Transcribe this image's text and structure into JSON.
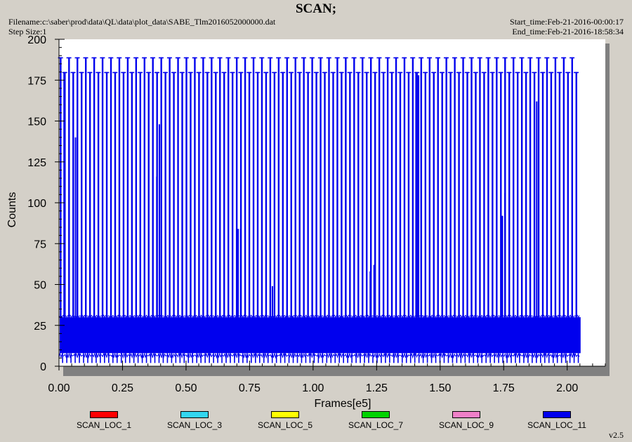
{
  "header": {
    "title": "SCAN;",
    "filename": "Filename:c:\\saber\\prod\\data\\QL\\data\\plot_data\\SABE_Tlm2016052000000.dat",
    "step_size": "Step Size:1",
    "start_time": "Start_time:Feb-21-2016-00:00:17",
    "end_time": "End_time:Feb-21-2016-18:58:34"
  },
  "version": "v2.5",
  "chart_data": {
    "type": "line",
    "title": "SCAN;",
    "xlabel": "Frames[e5]",
    "ylabel": "Counts",
    "xlim": [
      0.0,
      2.15
    ],
    "ylim": [
      0,
      200
    ],
    "xticks": [
      0.0,
      0.25,
      0.5,
      0.75,
      1.0,
      1.25,
      1.5,
      1.75,
      2.0
    ],
    "xtick_labels": [
      "0.00",
      "0.25",
      "0.50",
      "0.75",
      "1.00",
      "1.25",
      "1.50",
      "1.75",
      "2.00"
    ],
    "yticks": [
      0,
      25,
      50,
      75,
      100,
      125,
      150,
      175,
      200
    ],
    "ytick_labels": [
      "0",
      "25",
      "50",
      "75",
      "100",
      "125",
      "150",
      "175",
      "200"
    ],
    "grid": false,
    "legend_position": "bottom",
    "series": [
      {
        "name": "SCAN_LOC_1",
        "color": "#ff0000"
      },
      {
        "name": "SCAN_LOC_3",
        "color": "#33d6f0"
      },
      {
        "name": "SCAN_LOC_5",
        "color": "#ffff00"
      },
      {
        "name": "SCAN_LOC_7",
        "color": "#00d400"
      },
      {
        "name": "SCAN_LOC_9",
        "color": "#f080c8"
      },
      {
        "name": "SCAN_LOC_11",
        "color": "#0000ee",
        "x_range": [
          0.0,
          2.05
        ],
        "baseline_band": [
          8,
          30
        ],
        "repeating_peak": 180,
        "scan_period": 0.0165,
        "periodic_peak_value": 189,
        "periodic_peak_every": 2,
        "tall_spikes": [
          {
            "x": 0.02,
            "y": 180
          },
          {
            "x": 0.065,
            "y": 140
          },
          {
            "x": 0.385,
            "y": 116
          },
          {
            "x": 0.395,
            "y": 148
          },
          {
            "x": 0.705,
            "y": 84
          },
          {
            "x": 0.715,
            "y": 84
          },
          {
            "x": 0.84,
            "y": 49
          },
          {
            "x": 0.925,
            "y": 15
          },
          {
            "x": 1.225,
            "y": 58
          },
          {
            "x": 1.24,
            "y": 62
          },
          {
            "x": 1.405,
            "y": 180
          },
          {
            "x": 1.415,
            "y": 178
          },
          {
            "x": 1.425,
            "y": 180
          },
          {
            "x": 1.745,
            "y": 92
          },
          {
            "x": 1.755,
            "y": 106
          },
          {
            "x": 1.88,
            "y": 162
          }
        ]
      }
    ]
  }
}
